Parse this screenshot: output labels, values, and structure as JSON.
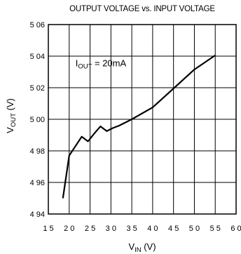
{
  "chart_data": {
    "type": "line",
    "title": "OUTPUT VOLTAGE vs. INPUT VOLTAGE",
    "xlabel": {
      "main": "V",
      "sub": "IN",
      "suffix": " (V)"
    },
    "ylabel": {
      "main": "V",
      "sub": "OUT",
      "suffix": " (V)"
    },
    "xlim": [
      15,
      60
    ],
    "ylim": [
      4.94,
      5.06
    ],
    "x_ticks": [
      15,
      20,
      25,
      30,
      35,
      40,
      45,
      50,
      55,
      60
    ],
    "x_tick_labels": [
      "1 5",
      "2 0",
      "2 5",
      "3 0",
      "3 5",
      "4 0",
      "4 5",
      "5 0",
      "5 5",
      "6 0"
    ],
    "y_ticks": [
      4.94,
      4.96,
      4.98,
      5.0,
      5.02,
      5.04,
      5.06
    ],
    "y_tick_labels": [
      "4 94",
      "4 96",
      "4 98",
      "5 00",
      "5 02",
      "5 04",
      "5 06"
    ],
    "grid": true,
    "annotation": {
      "main": "I",
      "sub": "OUT",
      "suffix": " = 20mA",
      "x": 21.5,
      "y": 5.0335
    },
    "series": [
      {
        "x": [
          18.5,
          20.0,
          21.5,
          23.0,
          24.5,
          26.0,
          27.5,
          29.0,
          30.5,
          32.0,
          35.0,
          40.0,
          45.0,
          50.0,
          55.0
        ],
        "y": [
          4.95,
          4.977,
          4.983,
          4.989,
          4.986,
          4.991,
          4.9955,
          4.9925,
          4.9945,
          4.996,
          5.0,
          5.0075,
          5.0195,
          5.0315,
          5.0405
        ]
      }
    ]
  }
}
